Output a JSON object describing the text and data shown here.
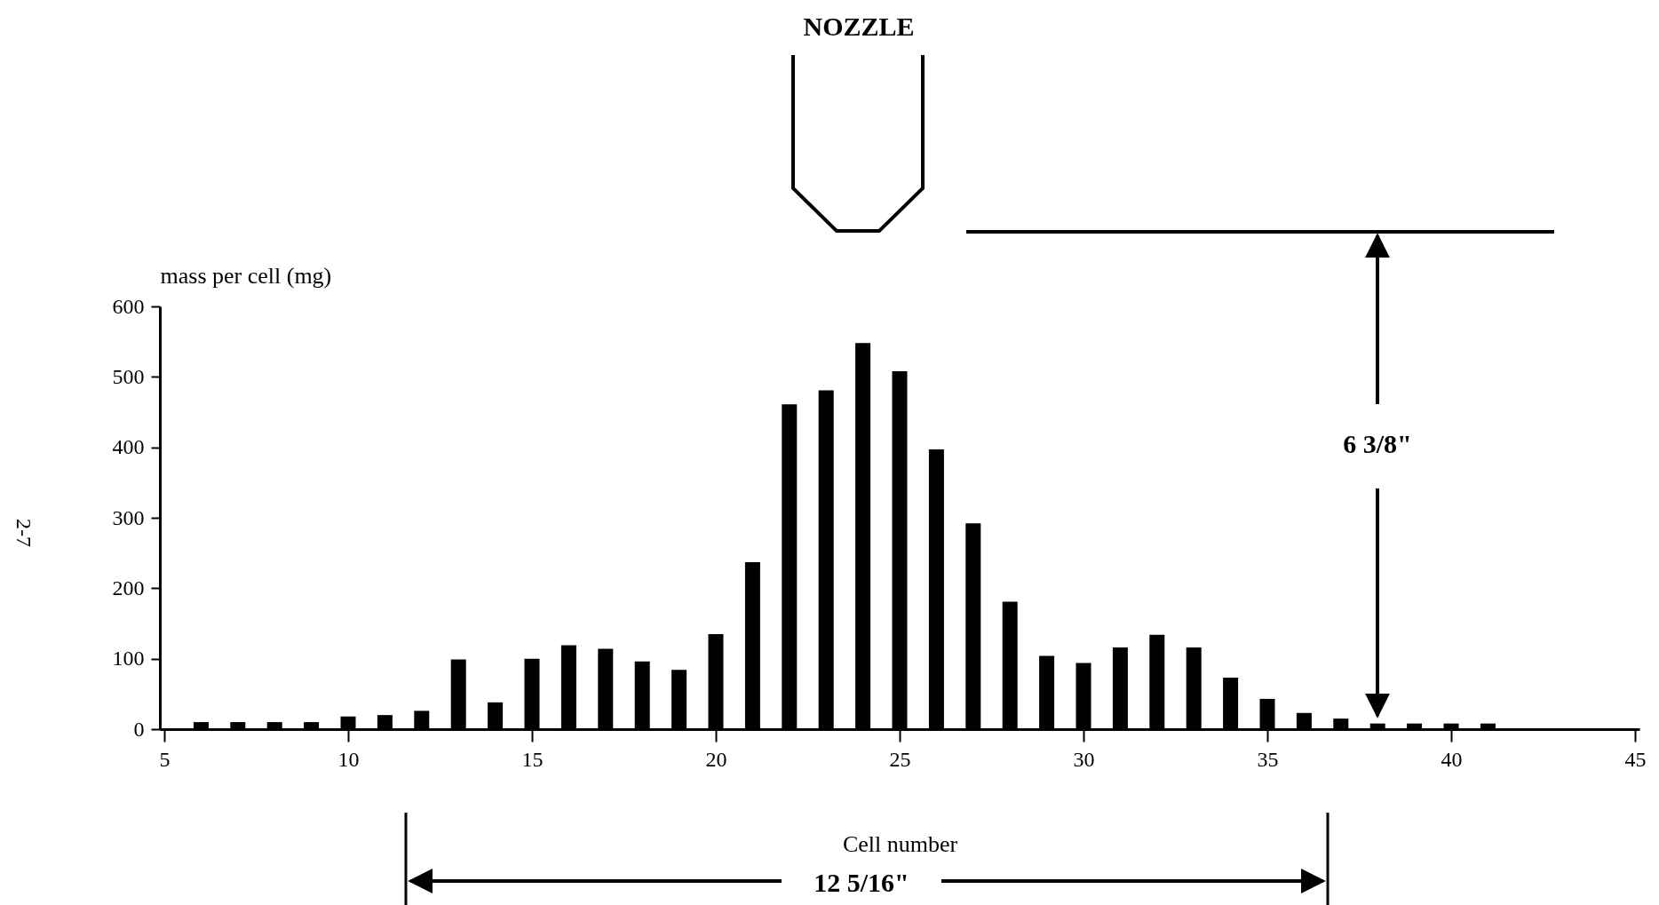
{
  "chart_data": {
    "type": "bar",
    "xlabel": "Cell number",
    "ylabel": "mass per cell (mg)",
    "x": [
      6,
      7,
      8,
      9,
      10,
      11,
      12,
      13,
      14,
      15,
      16,
      17,
      18,
      19,
      20,
      21,
      22,
      23,
      24,
      25,
      26,
      27,
      28,
      29,
      30,
      31,
      32,
      33,
      34,
      35,
      36,
      37,
      38,
      39,
      40,
      41
    ],
    "values": [
      10,
      10,
      10,
      10,
      18,
      20,
      26,
      99,
      38,
      100,
      119,
      114,
      96,
      84,
      135,
      237,
      461,
      481,
      548,
      508,
      397,
      292,
      181,
      104,
      94,
      116,
      134,
      116,
      73,
      43,
      23,
      15,
      8,
      8,
      8,
      8
    ],
    "color": "#000000",
    "xlim": [
      5,
      45
    ],
    "xticks": [
      5,
      10,
      15,
      20,
      25,
      30,
      35,
      40,
      45
    ],
    "ylim": [
      0,
      600
    ],
    "yticks": [
      0,
      100,
      200,
      300,
      400,
      500,
      600
    ],
    "grid": false,
    "annotations": [
      "NOZZLE",
      "6 3/8\"",
      "12 5/16\"",
      "2-7"
    ]
  }
}
